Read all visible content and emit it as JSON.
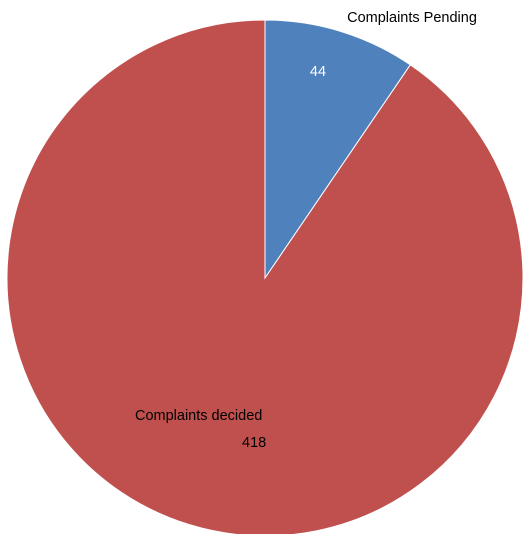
{
  "chart_data": {
    "type": "pie",
    "title": "",
    "slices": [
      {
        "label": "Complaints Pending",
        "value": 44,
        "color": "#4F81BD",
        "value_color": "#ffffff"
      },
      {
        "label": "Complaints decided",
        "value": 418,
        "color": "#C0504D",
        "value_color": "#000000"
      }
    ],
    "start_angle": "12 o'clock",
    "direction": "clockwise",
    "legend": "none",
    "text_color": "#000000"
  }
}
